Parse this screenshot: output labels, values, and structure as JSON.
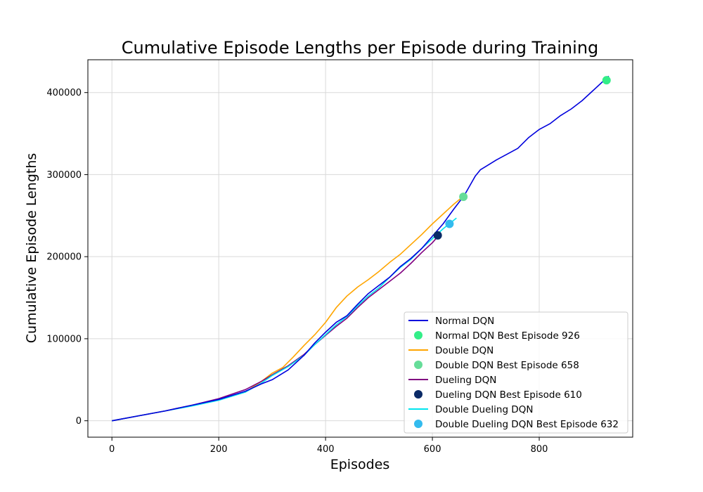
{
  "chart_data": {
    "type": "line",
    "title": "Cumulative Episode Lengths per Episode during Training",
    "xlabel": "Episodes",
    "ylabel": "Cumulative Episode Lengths",
    "xlim": [
      -45,
      975
    ],
    "ylim": [
      -20000,
      440000
    ],
    "xticks": [
      0,
      200,
      400,
      600,
      800
    ],
    "yticks": [
      0,
      100000,
      200000,
      300000,
      400000
    ],
    "grid": true,
    "legend_position": "lower-right",
    "series": [
      {
        "name": "Normal DQN",
        "color": "#0000dd",
        "x": [
          0,
          50,
          100,
          150,
          200,
          250,
          280,
          300,
          330,
          360,
          380,
          400,
          420,
          440,
          460,
          480,
          500,
          520,
          540,
          560,
          580,
          600,
          620,
          640,
          660,
          680,
          690,
          700,
          720,
          740,
          760,
          780,
          800,
          820,
          840,
          860,
          880,
          900,
          930
        ],
        "y": [
          0,
          6000,
          12000,
          19000,
          26000,
          36000,
          45000,
          50000,
          62000,
          80000,
          95000,
          108000,
          120000,
          128000,
          142000,
          155000,
          165000,
          175000,
          188000,
          198000,
          210000,
          225000,
          240000,
          258000,
          275000,
          298000,
          306000,
          310000,
          318000,
          325000,
          332000,
          345000,
          355000,
          362000,
          372000,
          380000,
          390000,
          402000,
          420000
        ]
      },
      {
        "name": "Double DQN",
        "color": "#ffa500",
        "x": [
          0,
          50,
          100,
          150,
          200,
          250,
          280,
          300,
          320,
          340,
          360,
          380,
          400,
          420,
          440,
          460,
          480,
          500,
          520,
          540,
          560,
          580,
          600,
          620,
          640,
          655
        ],
        "y": [
          0,
          6000,
          12000,
          19000,
          26000,
          35000,
          48000,
          58000,
          65000,
          78000,
          92000,
          105000,
          120000,
          138000,
          152000,
          163000,
          172000,
          182000,
          193000,
          203000,
          215000,
          227000,
          240000,
          252000,
          264000,
          272000
        ]
      },
      {
        "name": "Dueling DQN",
        "color": "#800080",
        "x": [
          0,
          50,
          100,
          150,
          200,
          250,
          280,
          300,
          330,
          360,
          380,
          400,
          420,
          440,
          460,
          480,
          500,
          520,
          540,
          560,
          580,
          600,
          612
        ],
        "y": [
          0,
          6000,
          12000,
          19000,
          27000,
          38000,
          48000,
          56000,
          67000,
          81000,
          93000,
          104000,
          115000,
          125000,
          138000,
          150000,
          160000,
          170000,
          180000,
          192000,
          205000,
          217000,
          226000
        ]
      },
      {
        "name": "Double Dueling DQN",
        "color": "#00e5ee",
        "x": [
          0,
          50,
          100,
          150,
          200,
          250,
          280,
          300,
          330,
          360,
          380,
          400,
          420,
          440,
          460,
          480,
          500,
          520,
          540,
          560,
          580,
          600,
          620,
          645
        ],
        "y": [
          0,
          6000,
          12000,
          18000,
          25000,
          35000,
          46000,
          55000,
          66000,
          80000,
          93000,
          105000,
          117000,
          127000,
          140000,
          152000,
          162000,
          175000,
          187000,
          197000,
          210000,
          222000,
          234000,
          247000
        ]
      }
    ],
    "markers": [
      {
        "name": "Normal DQN Best Episode 926",
        "x": 926,
        "y": 415000,
        "color": "#33ee88"
      },
      {
        "name": "Double DQN Best Episode 658",
        "x": 658,
        "y": 273000,
        "color": "#66dd99"
      },
      {
        "name": "Dueling DQN Best Episode 610",
        "x": 610,
        "y": 226000,
        "color": "#0a2a66"
      },
      {
        "name": "Double Dueling DQN Best Episode 632",
        "x": 632,
        "y": 240000,
        "color": "#33bbee"
      }
    ],
    "legend": [
      {
        "label": "Normal DQN",
        "kind": "line",
        "color": "#0000dd"
      },
      {
        "label": "Normal DQN Best Episode 926",
        "kind": "marker",
        "color": "#33ee88"
      },
      {
        "label": "Double DQN",
        "kind": "line",
        "color": "#ffa500"
      },
      {
        "label": "Double DQN Best Episode 658",
        "kind": "marker",
        "color": "#66dd99"
      },
      {
        "label": "Dueling DQN",
        "kind": "line",
        "color": "#800080"
      },
      {
        "label": "Dueling DQN Best Episode 610",
        "kind": "marker",
        "color": "#0a2a66"
      },
      {
        "label": "Double Dueling DQN",
        "kind": "line",
        "color": "#00e5ee"
      },
      {
        "label": "Double Dueling DQN Best Episode 632",
        "kind": "marker",
        "color": "#33bbee"
      }
    ]
  }
}
